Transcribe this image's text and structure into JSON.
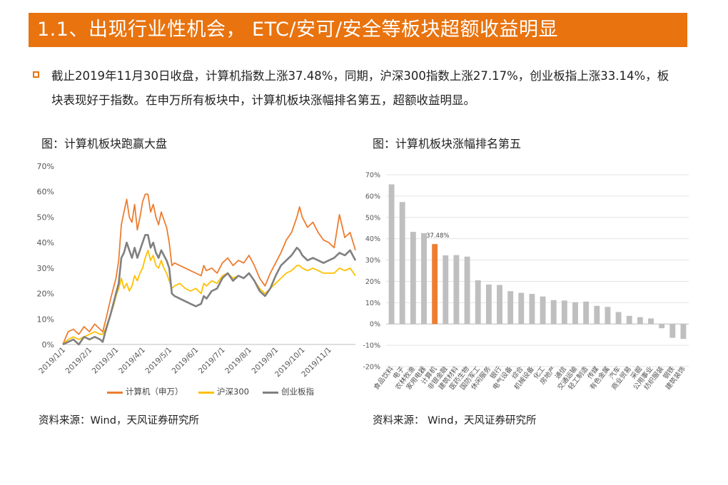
{
  "title": "1.1、出现行业性机会， ETC/安可/安全等板块超额收益明显",
  "summary": "截止2019年11月30日收盘，计算机指数上涨37.48%，同期，沪深300指数上涨27.17%，创业板指上涨33.14%，板块表现好于指数。在申万所有板块中，计算机板块涨幅排名第五，超额收益明显。",
  "colors": {
    "accent": "#E8730F",
    "computer": "#ED7D31",
    "hs300": "#FFC000",
    "gem": "#808080",
    "bar": "#BFBFBF"
  },
  "left_caption": "图：计算机板块跑赢大盘",
  "right_caption": "图：计算机板块涨幅排名第五",
  "left_source": "资料来源：Wind，天风证券研究所",
  "right_source": "资料来源： Wind，天风证券研究所",
  "chart_data": [
    {
      "type": "line",
      "title": "图：计算机板块跑赢大盘",
      "ylim": [
        0,
        70
      ],
      "yticks": [
        "0%",
        "10%",
        "20%",
        "30%",
        "40%",
        "50%",
        "60%",
        "70%"
      ],
      "xticks": [
        "2019/1/1",
        "2019/2/1",
        "2019/3/1",
        "2019/4/1",
        "2019/5/1",
        "2019/6/1",
        "2019/7/1",
        "2019/8/1",
        "2019/9/1",
        "2019/10/1",
        "2019/11/1"
      ],
      "x_range_months": [
        0,
        11
      ],
      "legend_position": "bottom",
      "series": [
        {
          "name": "计算机（申万）",
          "color": "#ED7D31",
          "points": [
            [
              0,
              0
            ],
            [
              0.2,
              5
            ],
            [
              0.4,
              6
            ],
            [
              0.6,
              4
            ],
            [
              0.8,
              7
            ],
            [
              1.0,
              5
            ],
            [
              1.2,
              8
            ],
            [
              1.4,
              6
            ],
            [
              1.5,
              5
            ],
            [
              1.6,
              9
            ],
            [
              1.8,
              18
            ],
            [
              1.9,
              22
            ],
            [
              2.0,
              26
            ],
            [
              2.1,
              33
            ],
            [
              2.2,
              47
            ],
            [
              2.3,
              52
            ],
            [
              2.4,
              57
            ],
            [
              2.5,
              50
            ],
            [
              2.6,
              48
            ],
            [
              2.7,
              55
            ],
            [
              2.8,
              45
            ],
            [
              2.9,
              50
            ],
            [
              3.0,
              56
            ],
            [
              3.1,
              59
            ],
            [
              3.2,
              59
            ],
            [
              3.3,
              52
            ],
            [
              3.4,
              55
            ],
            [
              3.5,
              50
            ],
            [
              3.6,
              47
            ],
            [
              3.7,
              52
            ],
            [
              3.8,
              49
            ],
            [
              3.9,
              46
            ],
            [
              4.0,
              40
            ],
            [
              4.1,
              31
            ],
            [
              4.2,
              32
            ],
            [
              4.4,
              31
            ],
            [
              4.6,
              30
            ],
            [
              4.8,
              29
            ],
            [
              5.0,
              28
            ],
            [
              5.2,
              27
            ],
            [
              5.3,
              31
            ],
            [
              5.4,
              29
            ],
            [
              5.6,
              30
            ],
            [
              5.8,
              28
            ],
            [
              6.0,
              32
            ],
            [
              6.2,
              34
            ],
            [
              6.4,
              31
            ],
            [
              6.6,
              33
            ],
            [
              6.8,
              32
            ],
            [
              7.0,
              35
            ],
            [
              7.2,
              31
            ],
            [
              7.4,
              26
            ],
            [
              7.6,
              23
            ],
            [
              7.8,
              28
            ],
            [
              8.0,
              32
            ],
            [
              8.2,
              36
            ],
            [
              8.4,
              41
            ],
            [
              8.6,
              44
            ],
            [
              8.8,
              50
            ],
            [
              8.9,
              54
            ],
            [
              9.0,
              50
            ],
            [
              9.2,
              46
            ],
            [
              9.4,
              48
            ],
            [
              9.6,
              44
            ],
            [
              9.8,
              41
            ],
            [
              10.0,
              40
            ],
            [
              10.2,
              38
            ],
            [
              10.4,
              51
            ],
            [
              10.6,
              42
            ],
            [
              10.8,
              44
            ],
            [
              11.0,
              37
            ]
          ]
        },
        {
          "name": "沪深300",
          "color": "#FFC000",
          "points": [
            [
              0,
              0
            ],
            [
              0.2,
              2
            ],
            [
              0.4,
              3
            ],
            [
              0.6,
              2
            ],
            [
              0.8,
              3
            ],
            [
              1.0,
              4
            ],
            [
              1.2,
              5
            ],
            [
              1.4,
              4
            ],
            [
              1.5,
              4
            ],
            [
              1.6,
              6
            ],
            [
              1.8,
              12
            ],
            [
              1.9,
              15
            ],
            [
              2.0,
              19
            ],
            [
              2.1,
              22
            ],
            [
              2.2,
              26
            ],
            [
              2.3,
              22
            ],
            [
              2.4,
              24
            ],
            [
              2.5,
              21
            ],
            [
              2.6,
              23
            ],
            [
              2.7,
              27
            ],
            [
              2.8,
              25
            ],
            [
              2.9,
              28
            ],
            [
              3.0,
              30
            ],
            [
              3.1,
              34
            ],
            [
              3.2,
              37
            ],
            [
              3.3,
              33
            ],
            [
              3.4,
              35
            ],
            [
              3.5,
              31
            ],
            [
              3.6,
              30
            ],
            [
              3.7,
              33
            ],
            [
              3.8,
              30
            ],
            [
              3.9,
              28
            ],
            [
              4.0,
              25
            ],
            [
              4.1,
              22
            ],
            [
              4.2,
              23
            ],
            [
              4.4,
              24
            ],
            [
              4.6,
              22
            ],
            [
              4.8,
              21
            ],
            [
              5.0,
              22
            ],
            [
              5.2,
              20
            ],
            [
              5.3,
              24
            ],
            [
              5.4,
              23
            ],
            [
              5.6,
              25
            ],
            [
              5.8,
              24
            ],
            [
              6.0,
              27
            ],
            [
              6.2,
              28
            ],
            [
              6.4,
              26
            ],
            [
              6.6,
              27
            ],
            [
              6.8,
              26
            ],
            [
              7.0,
              28
            ],
            [
              7.2,
              25
            ],
            [
              7.4,
              22
            ],
            [
              7.6,
              20
            ],
            [
              7.8,
              22
            ],
            [
              8.0,
              24
            ],
            [
              8.2,
              26
            ],
            [
              8.4,
              28
            ],
            [
              8.6,
              29
            ],
            [
              8.8,
              31
            ],
            [
              8.9,
              31
            ],
            [
              9.0,
              30
            ],
            [
              9.2,
              29
            ],
            [
              9.4,
              30
            ],
            [
              9.6,
              29
            ],
            [
              9.8,
              28
            ],
            [
              10.0,
              28
            ],
            [
              10.2,
              28
            ],
            [
              10.4,
              30
            ],
            [
              10.6,
              29
            ],
            [
              10.8,
              30
            ],
            [
              11.0,
              27
            ]
          ]
        },
        {
          "name": "创业板指",
          "color": "#808080",
          "points": [
            [
              0,
              0
            ],
            [
              0.2,
              1
            ],
            [
              0.4,
              2
            ],
            [
              0.6,
              0
            ],
            [
              0.8,
              3
            ],
            [
              1.0,
              2
            ],
            [
              1.2,
              3
            ],
            [
              1.4,
              2
            ],
            [
              1.5,
              1
            ],
            [
              1.6,
              5
            ],
            [
              1.8,
              12
            ],
            [
              1.9,
              16
            ],
            [
              2.0,
              20
            ],
            [
              2.1,
              24
            ],
            [
              2.2,
              34
            ],
            [
              2.3,
              36
            ],
            [
              2.4,
              40
            ],
            [
              2.5,
              37
            ],
            [
              2.6,
              34
            ],
            [
              2.7,
              38
            ],
            [
              2.8,
              34
            ],
            [
              2.9,
              37
            ],
            [
              3.0,
              40
            ],
            [
              3.1,
              43
            ],
            [
              3.2,
              43
            ],
            [
              3.3,
              38
            ],
            [
              3.4,
              40
            ],
            [
              3.5,
              36
            ],
            [
              3.6,
              34
            ],
            [
              3.7,
              37
            ],
            [
              3.8,
              35
            ],
            [
              3.9,
              33
            ],
            [
              4.0,
              30
            ],
            [
              4.1,
              20
            ],
            [
              4.2,
              19
            ],
            [
              4.4,
              18
            ],
            [
              4.6,
              17
            ],
            [
              4.8,
              16
            ],
            [
              5.0,
              15
            ],
            [
              5.2,
              16
            ],
            [
              5.3,
              19
            ],
            [
              5.4,
              18
            ],
            [
              5.6,
              21
            ],
            [
              5.8,
              22
            ],
            [
              6.0,
              26
            ],
            [
              6.2,
              28
            ],
            [
              6.4,
              25
            ],
            [
              6.6,
              27
            ],
            [
              6.8,
              26
            ],
            [
              7.0,
              28
            ],
            [
              7.2,
              25
            ],
            [
              7.4,
              21
            ],
            [
              7.6,
              19
            ],
            [
              7.8,
              22
            ],
            [
              8.0,
              27
            ],
            [
              8.2,
              31
            ],
            [
              8.4,
              33
            ],
            [
              8.6,
              35
            ],
            [
              8.8,
              38
            ],
            [
              8.9,
              37
            ],
            [
              9.0,
              35
            ],
            [
              9.2,
              33
            ],
            [
              9.4,
              34
            ],
            [
              9.6,
              33
            ],
            [
              9.8,
              32
            ],
            [
              10.0,
              33
            ],
            [
              10.2,
              34
            ],
            [
              10.4,
              36
            ],
            [
              10.6,
              35
            ],
            [
              10.8,
              37
            ],
            [
              11.0,
              33
            ]
          ]
        }
      ]
    },
    {
      "type": "bar",
      "title": "图：计算机板块涨幅排名第五",
      "ylim": [
        -20,
        70
      ],
      "yticks": [
        "70%",
        "60%",
        "50%",
        "40%",
        "30%",
        "20%",
        "10%",
        "0%",
        "-10%",
        "-20%"
      ],
      "highlight_index": 4,
      "highlight_label": "37.48%",
      "categories": [
        "食品饮料",
        "电子",
        "农林牧渔",
        "家用电器",
        "计算机",
        "非银金融",
        "建筑材料",
        "医药生物",
        "国防军工",
        "休闲服务",
        "银行",
        "电气设备",
        "综合",
        "机械设备",
        "化工",
        "房地产",
        "通信",
        "交通运输",
        "轻工制造",
        "传媒",
        "有色金属",
        "汽车",
        "商业贸易",
        "采掘",
        "公用事业",
        "纺织服装",
        "钢铁",
        "建筑装饰"
      ],
      "values": [
        65.5,
        57.2,
        43.2,
        42.6,
        37.48,
        32.2,
        32.3,
        31.6,
        20.5,
        18.5,
        18.3,
        15.4,
        14.6,
        14.1,
        12.9,
        11.2,
        11.0,
        10.2,
        10.5,
        8.5,
        8.0,
        5.6,
        3.8,
        3.2,
        2.6,
        -2.0,
        -6.5,
        -7.0
      ]
    }
  ]
}
